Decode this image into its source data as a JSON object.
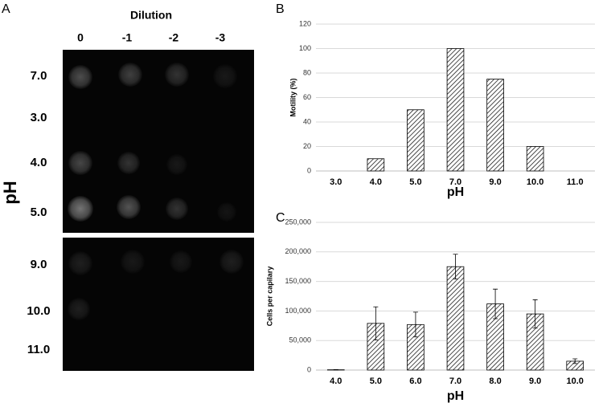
{
  "panel_labels": [
    "A",
    "B",
    "C"
  ],
  "spot_assay": {
    "title": "Dilution",
    "dilutions": [
      "0",
      "-1",
      "-2",
      "-3"
    ],
    "axis_label": "pH",
    "rows": [
      "7.0",
      "3.0",
      "4.0",
      "5.0",
      "9.0",
      "10.0",
      "11.0"
    ]
  },
  "chart_data": [
    {
      "type": "bar",
      "y_label": "Motility (%)",
      "x_label": "pH",
      "categories": [
        "3.0",
        "4.0",
        "5.0",
        "7.0",
        "9.0",
        "10.0",
        "11.0"
      ],
      "values": [
        0,
        10,
        50,
        100,
        75,
        20,
        0
      ],
      "color": "#000000",
      "ylim": [
        0,
        120
      ],
      "yticks": [
        0,
        20,
        40,
        60,
        80,
        100,
        120
      ],
      "grid": true
    },
    {
      "type": "bar",
      "y_label": "Cells per capilary",
      "x_label": "pH",
      "categories": [
        "4.0",
        "5.0",
        "6.0",
        "7.0",
        "8.0",
        "9.0",
        "10.0"
      ],
      "values": [
        500,
        79000,
        77000,
        175000,
        112000,
        95000,
        15000
      ],
      "errors": [
        300,
        28000,
        21000,
        21000,
        25000,
        24000,
        4000
      ],
      "color": "#000000",
      "ylim": [
        0,
        250000
      ],
      "yticks": [
        0,
        {
          "value": 50000,
          "label": "50,000"
        },
        {
          "value": 100000,
          "label": "100,000"
        },
        {
          "value": 150000,
          "label": "150,000"
        },
        {
          "value": 200000,
          "label": "200,000"
        },
        {
          "value": 250000,
          "label": "250,000"
        }
      ],
      "grid": true
    }
  ]
}
